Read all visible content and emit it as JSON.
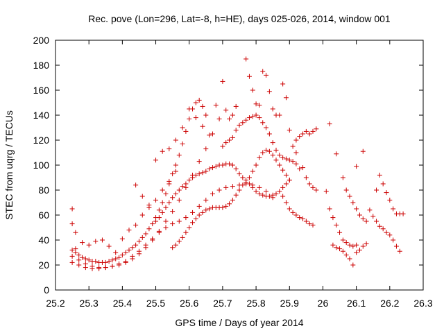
{
  "chart_data": {
    "type": "scatter",
    "title": "Rec. pove (Lon=296, Lat=-8, h=HE), days 025-026, 2014, window 001",
    "xlabel": "GPS time / Days of year 2014",
    "ylabel": "STEC from uqrg / TECUs",
    "xlim": [
      25.2,
      26.3
    ],
    "ylim": [
      0,
      200
    ],
    "x_ticks": [
      "25.2",
      "25.3",
      "25.4",
      "25.5",
      "25.6",
      "25.7",
      "25.8",
      "25.9",
      "26",
      "26.1",
      "26.2",
      "26.3"
    ],
    "y_ticks": [
      "0",
      "20",
      "40",
      "60",
      "80",
      "100",
      "120",
      "140",
      "160",
      "180",
      "200"
    ],
    "grid": false,
    "marker": "+",
    "marker_color": "#cc0000",
    "series": [
      {
        "points": [
          [
            25.25,
            65
          ],
          [
            25.25,
            53
          ],
          [
            25.26,
            46
          ],
          [
            25.25,
            32
          ],
          [
            25.26,
            30
          ],
          [
            25.27,
            28
          ],
          [
            25.28,
            26
          ],
          [
            25.29,
            25
          ],
          [
            25.3,
            24
          ],
          [
            25.31,
            23
          ],
          [
            25.32,
            23
          ],
          [
            25.33,
            22
          ],
          [
            25.34,
            22
          ],
          [
            25.35,
            22
          ],
          [
            25.36,
            23
          ],
          [
            25.37,
            24
          ],
          [
            25.38,
            25
          ],
          [
            25.39,
            26
          ],
          [
            25.4,
            28
          ],
          [
            25.41,
            30
          ],
          [
            25.42,
            32
          ],
          [
            25.43,
            34
          ],
          [
            25.44,
            36
          ],
          [
            25.45,
            39
          ],
          [
            25.46,
            42
          ],
          [
            25.47,
            45
          ],
          [
            25.48,
            49
          ],
          [
            25.49,
            53
          ],
          [
            25.5,
            58
          ],
          [
            25.51,
            64
          ],
          [
            25.52,
            70
          ],
          [
            25.53,
            77
          ],
          [
            25.54,
            85
          ],
          [
            25.55,
            93
          ],
          [
            25.56,
            100
          ],
          [
            25.57,
            108
          ],
          [
            25.58,
            117
          ],
          [
            25.59,
            127
          ],
          [
            25.6,
            137
          ],
          [
            25.61,
            145
          ],
          [
            25.62,
            150
          ],
          [
            25.63,
            152
          ],
          [
            25.64,
            147
          ],
          [
            25.65,
            140
          ],
          [
            25.25,
            27
          ],
          [
            25.27,
            24
          ],
          [
            25.29,
            21
          ],
          [
            25.31,
            19
          ],
          [
            25.33,
            18
          ],
          [
            25.35,
            18
          ],
          [
            25.37,
            19
          ],
          [
            25.39,
            20
          ],
          [
            25.41,
            22
          ],
          [
            25.43,
            25
          ],
          [
            25.45,
            29
          ],
          [
            25.47,
            34
          ],
          [
            25.49,
            40
          ],
          [
            25.51,
            47
          ],
          [
            25.53,
            55
          ],
          [
            25.55,
            63
          ],
          [
            25.57,
            72
          ],
          [
            25.59,
            82
          ],
          [
            25.61,
            92
          ],
          [
            25.63,
            103
          ],
          [
            25.65,
            113
          ],
          [
            25.67,
            125
          ],
          [
            25.69,
            137
          ],
          [
            25.71,
            144
          ],
          [
            25.73,
            140
          ],
          [
            25.25,
            22
          ],
          [
            25.27,
            20
          ],
          [
            25.29,
            18
          ],
          [
            25.31,
            17
          ],
          [
            25.33,
            17
          ],
          [
            25.35,
            18
          ],
          [
            25.37,
            19
          ],
          [
            25.39,
            21
          ],
          [
            25.41,
            23
          ],
          [
            25.43,
            27
          ],
          [
            25.45,
            31
          ],
          [
            25.47,
            36
          ],
          [
            25.49,
            41
          ],
          [
            25.51,
            46
          ],
          [
            25.53,
            50
          ],
          [
            25.55,
            53
          ],
          [
            25.57,
            55
          ],
          [
            25.59,
            58
          ],
          [
            25.61,
            62
          ],
          [
            25.63,
            67
          ],
          [
            25.65,
            72
          ],
          [
            25.67,
            77
          ],
          [
            25.69,
            80
          ],
          [
            25.71,
            82
          ],
          [
            25.73,
            83
          ],
          [
            25.75,
            84
          ],
          [
            25.77,
            85
          ],
          [
            25.79,
            84
          ],
          [
            25.81,
            82
          ],
          [
            25.83,
            79
          ],
          [
            25.85,
            74
          ],
          [
            25.5,
            55
          ],
          [
            25.51,
            58
          ],
          [
            25.52,
            62
          ],
          [
            25.53,
            66
          ],
          [
            25.54,
            70
          ],
          [
            25.55,
            74
          ],
          [
            25.56,
            77
          ],
          [
            25.57,
            80
          ],
          [
            25.58,
            83
          ],
          [
            25.59,
            85
          ],
          [
            25.6,
            88
          ],
          [
            25.61,
            90
          ],
          [
            25.62,
            92
          ],
          [
            25.63,
            93
          ],
          [
            25.64,
            94
          ],
          [
            25.65,
            95
          ],
          [
            25.66,
            97
          ],
          [
            25.67,
            98
          ],
          [
            25.68,
            99
          ],
          [
            25.69,
            100
          ],
          [
            25.7,
            100
          ],
          [
            25.71,
            101
          ],
          [
            25.72,
            101
          ],
          [
            25.73,
            100
          ],
          [
            25.74,
            97
          ],
          [
            25.75,
            93
          ],
          [
            25.76,
            90
          ],
          [
            25.77,
            88
          ],
          [
            25.78,
            90
          ],
          [
            25.79,
            95
          ],
          [
            25.8,
            100
          ],
          [
            25.81,
            106
          ],
          [
            25.82,
            110
          ],
          [
            25.83,
            112
          ],
          [
            25.84,
            111
          ],
          [
            25.85,
            108
          ],
          [
            25.86,
            104
          ],
          [
            25.87,
            100
          ],
          [
            25.88,
            96
          ],
          [
            25.89,
            92
          ],
          [
            25.9,
            88
          ],
          [
            25.55,
            34
          ],
          [
            25.56,
            36
          ],
          [
            25.57,
            39
          ],
          [
            25.58,
            42
          ],
          [
            25.59,
            46
          ],
          [
            25.6,
            50
          ],
          [
            25.61,
            54
          ],
          [
            25.62,
            57
          ],
          [
            25.63,
            60
          ],
          [
            25.64,
            62
          ],
          [
            25.65,
            64
          ],
          [
            25.66,
            65
          ],
          [
            25.67,
            66
          ],
          [
            25.68,
            66
          ],
          [
            25.69,
            66
          ],
          [
            25.7,
            66
          ],
          [
            25.71,
            67
          ],
          [
            25.72,
            69
          ],
          [
            25.73,
            72
          ],
          [
            25.74,
            76
          ],
          [
            25.75,
            80
          ],
          [
            25.76,
            84
          ],
          [
            25.77,
            86
          ],
          [
            25.78,
            85
          ],
          [
            25.79,
            82
          ],
          [
            25.8,
            79
          ],
          [
            25.81,
            77
          ],
          [
            25.82,
            76
          ],
          [
            25.83,
            75
          ],
          [
            25.84,
            75
          ],
          [
            25.85,
            76
          ],
          [
            25.86,
            77
          ],
          [
            25.87,
            79
          ],
          [
            25.88,
            82
          ],
          [
            25.89,
            85
          ],
          [
            25.9,
            88
          ],
          [
            25.7,
            115
          ],
          [
            25.71,
            118
          ],
          [
            25.72,
            120
          ],
          [
            25.73,
            122
          ],
          [
            25.74,
            128
          ],
          [
            25.75,
            132
          ],
          [
            25.76,
            134
          ],
          [
            25.77,
            136
          ],
          [
            25.78,
            138
          ],
          [
            25.79,
            139
          ],
          [
            25.8,
            140
          ],
          [
            25.81,
            138
          ],
          [
            25.82,
            134
          ],
          [
            25.83,
            130
          ],
          [
            25.84,
            125
          ],
          [
            25.85,
            118
          ],
          [
            25.86,
            112
          ],
          [
            25.87,
            108
          ],
          [
            25.88,
            106
          ],
          [
            25.89,
            105
          ],
          [
            25.9,
            104
          ],
          [
            25.91,
            103
          ],
          [
            25.92,
            101
          ],
          [
            25.93,
            97
          ],
          [
            25.77,
            185
          ],
          [
            25.78,
            171
          ],
          [
            25.79,
            160
          ],
          [
            25.8,
            149
          ],
          [
            25.81,
            148
          ],
          [
            25.82,
            175
          ],
          [
            25.83,
            172
          ],
          [
            25.84,
            159
          ],
          [
            25.85,
            145
          ],
          [
            25.86,
            140
          ],
          [
            25.87,
            140
          ],
          [
            25.88,
            165
          ],
          [
            25.89,
            154
          ],
          [
            25.9,
            128
          ],
          [
            25.91,
            115
          ],
          [
            25.92,
            110
          ],
          [
            25.88,
            75
          ],
          [
            25.89,
            70
          ],
          [
            25.9,
            65
          ],
          [
            25.91,
            62
          ],
          [
            25.92,
            60
          ],
          [
            25.93,
            58
          ],
          [
            25.94,
            57
          ],
          [
            25.95,
            55
          ],
          [
            25.96,
            53
          ],
          [
            25.97,
            52
          ],
          [
            25.92,
            120
          ],
          [
            25.93,
            123
          ],
          [
            25.94,
            125
          ],
          [
            25.95,
            127
          ],
          [
            25.96,
            125
          ],
          [
            25.97,
            127
          ],
          [
            25.98,
            129
          ],
          [
            25.94,
            98
          ],
          [
            25.95,
            90
          ],
          [
            25.96,
            85
          ],
          [
            25.97,
            82
          ],
          [
            25.98,
            80
          ],
          [
            26.01,
            79
          ],
          [
            26.02,
            65
          ],
          [
            26.03,
            58
          ],
          [
            26.04,
            52
          ],
          [
            26.05,
            46
          ],
          [
            26.06,
            40
          ],
          [
            26.07,
            38
          ],
          [
            26.08,
            36
          ],
          [
            26.09,
            35
          ],
          [
            26.1,
            36
          ],
          [
            26.02,
            133
          ],
          [
            26.04,
            109
          ],
          [
            26.06,
            90
          ],
          [
            26.07,
            80
          ],
          [
            26.08,
            75
          ],
          [
            26.09,
            70
          ],
          [
            26.1,
            65
          ],
          [
            26.11,
            60
          ],
          [
            26.12,
            57
          ],
          [
            26.13,
            55
          ],
          [
            26.03,
            36
          ],
          [
            26.04,
            34
          ],
          [
            26.05,
            33
          ],
          [
            26.06,
            31
          ],
          [
            26.07,
            28
          ],
          [
            26.08,
            25
          ],
          [
            26.09,
            20
          ],
          [
            26.1,
            30
          ],
          [
            26.11,
            32
          ],
          [
            26.12,
            35
          ],
          [
            26.13,
            37
          ],
          [
            26.1,
            99
          ],
          [
            26.12,
            111
          ],
          [
            26.14,
            64
          ],
          [
            26.15,
            59
          ],
          [
            26.16,
            55
          ],
          [
            26.17,
            51
          ],
          [
            26.18,
            49
          ],
          [
            26.19,
            46
          ],
          [
            26.2,
            44
          ],
          [
            26.21,
            40
          ],
          [
            26.22,
            35
          ],
          [
            26.23,
            31
          ],
          [
            26.16,
            80
          ],
          [
            26.17,
            92
          ],
          [
            26.18,
            85
          ],
          [
            26.19,
            78
          ],
          [
            26.2,
            72
          ],
          [
            26.21,
            65
          ],
          [
            26.22,
            61
          ],
          [
            26.23,
            61
          ],
          [
            26.24,
            61
          ],
          [
            25.26,
            33
          ],
          [
            25.28,
            38
          ],
          [
            25.3,
            36
          ],
          [
            25.32,
            39
          ],
          [
            25.34,
            40
          ],
          [
            25.36,
            35
          ],
          [
            25.38,
            30
          ],
          [
            25.4,
            41
          ],
          [
            25.42,
            48
          ],
          [
            25.44,
            52
          ],
          [
            25.46,
            60
          ],
          [
            25.48,
            66
          ],
          [
            25.5,
            72
          ],
          [
            25.52,
            80
          ],
          [
            25.54,
            87
          ],
          [
            25.56,
            95
          ],
          [
            25.44,
            84
          ],
          [
            25.46,
            75
          ],
          [
            25.48,
            68
          ],
          [
            25.5,
            104
          ],
          [
            25.52,
            111
          ],
          [
            25.54,
            113
          ],
          [
            25.56,
            120
          ],
          [
            25.58,
            130
          ],
          [
            25.6,
            145
          ],
          [
            25.62,
            138
          ],
          [
            25.64,
            131
          ],
          [
            25.66,
            124
          ],
          [
            25.68,
            148
          ],
          [
            25.7,
            167
          ],
          [
            25.72,
            137
          ],
          [
            25.74,
            147
          ]
        ]
      }
    ]
  }
}
